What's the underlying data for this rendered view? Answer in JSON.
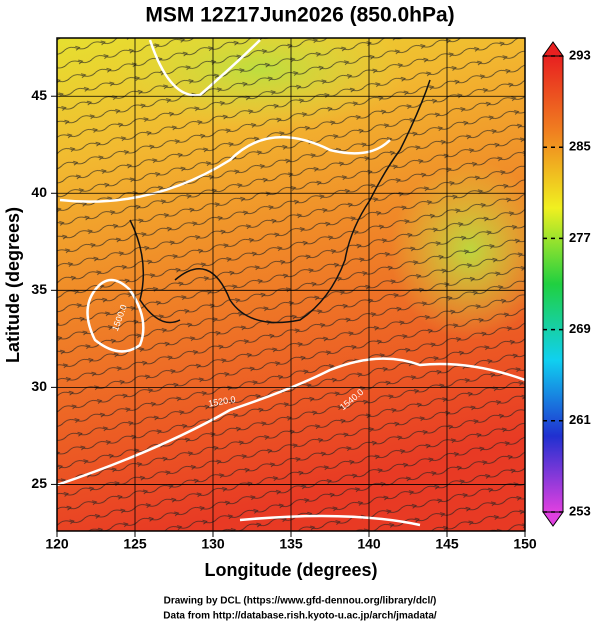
{
  "chart_data": {
    "type": "map",
    "title": "MSM 12Z17Jun2026 (850.0hPa)",
    "x_label": "Longitude (degrees)",
    "y_label": "Latitude  (degrees)",
    "xlim": [
      120,
      150
    ],
    "ylim": [
      22.6,
      48
    ],
    "xticks": [
      120,
      125,
      130,
      135,
      140,
      145,
      150
    ],
    "yticks": [
      25,
      30,
      35,
      40,
      45
    ],
    "grid": true,
    "colorbar": {
      "lim": [
        253,
        293
      ],
      "ticks": [
        253,
        261,
        269,
        277,
        285,
        293
      ],
      "colors": [
        "#e040e0",
        "#2030d0",
        "#10d0f0",
        "#20d040",
        "#f0f020",
        "#f08020",
        "#e82020"
      ]
    },
    "contour_labels": [
      "1500.0",
      "1520.0",
      "1540.0"
    ]
  },
  "credits": [
    "Drawing by DCL (https://www.gfd-dennou.org/library/dcl/)",
    "Data from http://database.rish.kyoto-u.ac.jp/arch/jmadata/"
  ]
}
